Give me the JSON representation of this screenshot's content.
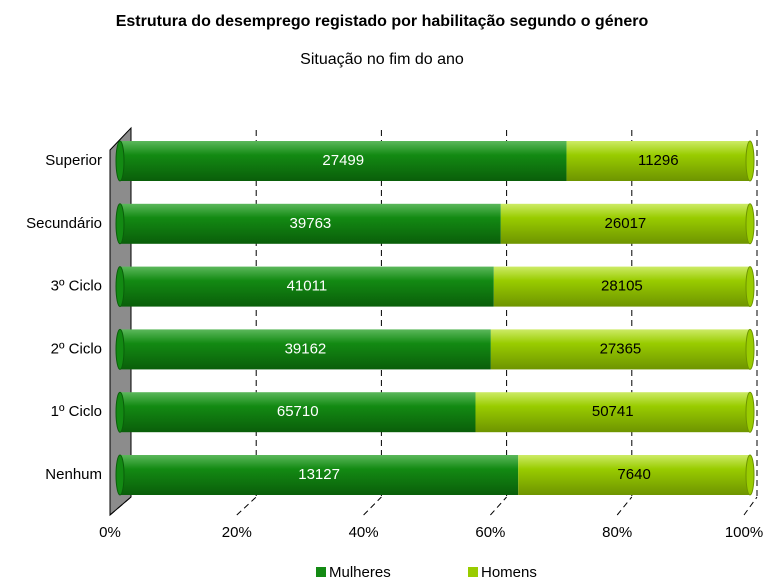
{
  "chart_data": {
    "type": "bar",
    "orientation": "horizontal",
    "stacked": "percent",
    "title": "Estrutura do desemprego registado por habilitação segundo o género",
    "subtitle": "Situação no fim do ano",
    "categories": [
      "Superior",
      "Secundário",
      "3º Ciclo",
      "2º Ciclo",
      "1º Ciclo",
      "Nenhum"
    ],
    "series": [
      {
        "name": "Mulheres",
        "color": "#138a13",
        "values": [
          27499,
          39763,
          41011,
          39162,
          65710,
          13127
        ]
      },
      {
        "name": "Homens",
        "color": "#99cc00",
        "values": [
          11296,
          26017,
          28105,
          27365,
          50741,
          7640
        ]
      }
    ],
    "xlim": [
      0,
      100
    ],
    "xticks": [
      {
        "value": 0,
        "label": "0%"
      },
      {
        "value": 20,
        "label": "20%"
      },
      {
        "value": 40,
        "label": "40%"
      },
      {
        "value": 60,
        "label": "60%"
      },
      {
        "value": 80,
        "label": "80%"
      },
      {
        "value": 100,
        "label": "100%"
      }
    ],
    "grid": true,
    "legend": "bottom"
  }
}
